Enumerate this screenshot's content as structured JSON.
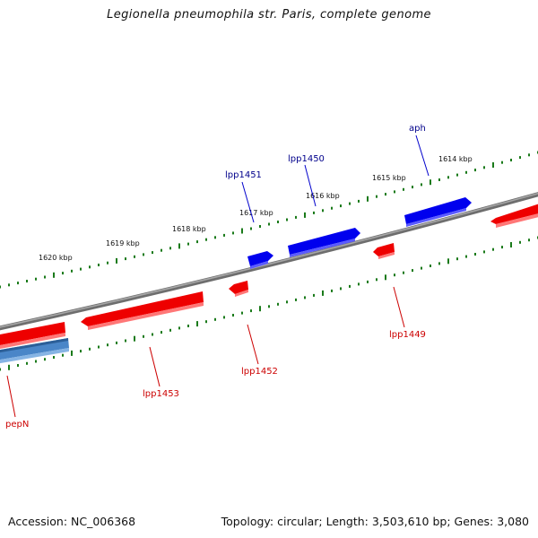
{
  "title": "Legionella pneumophila str. Paris, complete genome",
  "footer": {
    "accession": "Accession: NC_006368",
    "summary": "Topology: circular; Length: 3,503,610 bp; Genes: 3,080"
  },
  "colors": {
    "backbone": "#808080",
    "tick": "#1a7a1a",
    "forward_gene": "#0000ff",
    "reverse_gene": "#ff0000",
    "highlight_gene": "#4a86c8",
    "forward_label": "#00008b",
    "reverse_label": "#cc0000"
  },
  "scale_labels": [
    "1620 kbp",
    "1619 kbp",
    "1618 kbp",
    "1617 kbp",
    "1616 kbp",
    "1615 kbp",
    "1614 kbp"
  ],
  "genes": [
    {
      "label": "lpp1451",
      "strand": "forward"
    },
    {
      "label": "lpp1450",
      "strand": "forward"
    },
    {
      "label": "aph",
      "strand": "forward"
    },
    {
      "label": "lpp1453",
      "strand": "reverse"
    },
    {
      "label": "lpp1452",
      "strand": "reverse"
    },
    {
      "label": "lpp1449",
      "strand": "reverse"
    },
    {
      "label": "pepN",
      "strand": "reverse"
    }
  ]
}
